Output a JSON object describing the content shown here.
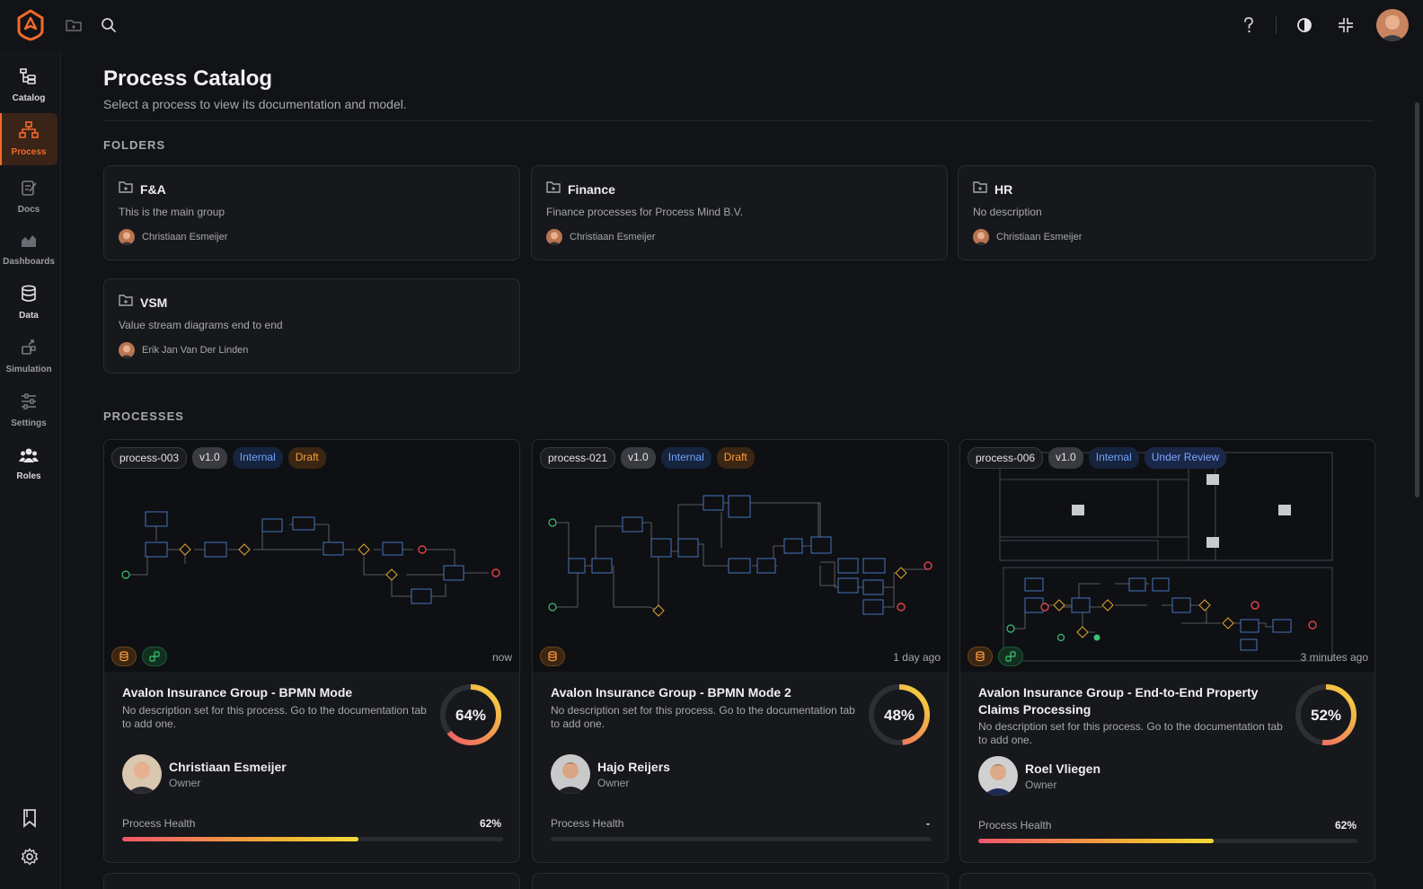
{
  "topbar": {
    "icons": [
      "logo-icon",
      "folder-icon",
      "search-icon",
      "help-icon",
      "theme-icon",
      "minimize-icon"
    ]
  },
  "sidebar": {
    "items": [
      {
        "label": "Catalog",
        "icon": "catalog-icon"
      },
      {
        "label": "Process",
        "icon": "process-icon"
      },
      {
        "label": "Docs",
        "icon": "docs-icon"
      },
      {
        "label": "Dashboards",
        "icon": "dashboards-icon"
      },
      {
        "label": "Data",
        "icon": "data-icon"
      },
      {
        "label": "Simulation",
        "icon": "simulation-icon"
      },
      {
        "label": "Settings",
        "icon": "settings-icon"
      },
      {
        "label": "Roles",
        "icon": "roles-icon"
      }
    ]
  },
  "page": {
    "title": "Process Catalog",
    "subtitle": "Select a process to view its documentation and model."
  },
  "folders_label": "FOLDERS",
  "folders": [
    {
      "name": "F&A",
      "desc": "This is the main group",
      "owner": "Christiaan Esmeijer"
    },
    {
      "name": "Finance",
      "desc": "Finance processes for Process Mind B.V.",
      "owner": "Christiaan Esmeijer"
    },
    {
      "name": "HR",
      "desc": "No description",
      "owner": "Christiaan Esmeijer"
    },
    {
      "name": "VSM",
      "desc": "Value stream diagrams end to end",
      "owner": "Erik Jan Van Der Linden"
    }
  ],
  "processes_label": "PROCESSES",
  "processes": [
    {
      "id": "process-003",
      "version": "v1.0",
      "visibility": "Internal",
      "status": "Draft",
      "time": "now",
      "title": "Avalon Insurance Group - BPMN Mode",
      "desc": "No description set for this process. Go to the documentation tab to add one.",
      "score": "64%",
      "score_value": 64,
      "owner": "Christiaan Esmeijer",
      "role": "Owner",
      "health_label": "Process Health",
      "health": "62%",
      "health_value": 62
    },
    {
      "id": "process-021",
      "version": "v1.0",
      "visibility": "Internal",
      "status": "Draft",
      "time": "1 day ago",
      "title": "Avalon Insurance Group - BPMN Mode 2",
      "desc": "No description set for this process. Go to the documentation tab to add one.",
      "score": "48%",
      "score_value": 48,
      "owner": "Hajo Reijers",
      "role": "Owner",
      "health_label": "Process Health",
      "health": "-",
      "health_value": 0
    },
    {
      "id": "process-006",
      "version": "v1.0",
      "visibility": "Internal",
      "status": "Under Review",
      "time": "3 minutes ago",
      "title": "Avalon Insurance Group - End-to-End Property Claims Processing",
      "desc": "No description set for this process. Go to the documentation tab to add one.",
      "score": "52%",
      "score_value": 52,
      "owner": "Roel Vliegen",
      "role": "Owner",
      "health_label": "Process Health",
      "health": "62%",
      "health_value": 62
    }
  ],
  "colors": {
    "accent": "#f26b2a",
    "internal": "#6fa3ff",
    "draft": "#ff9c3a"
  }
}
